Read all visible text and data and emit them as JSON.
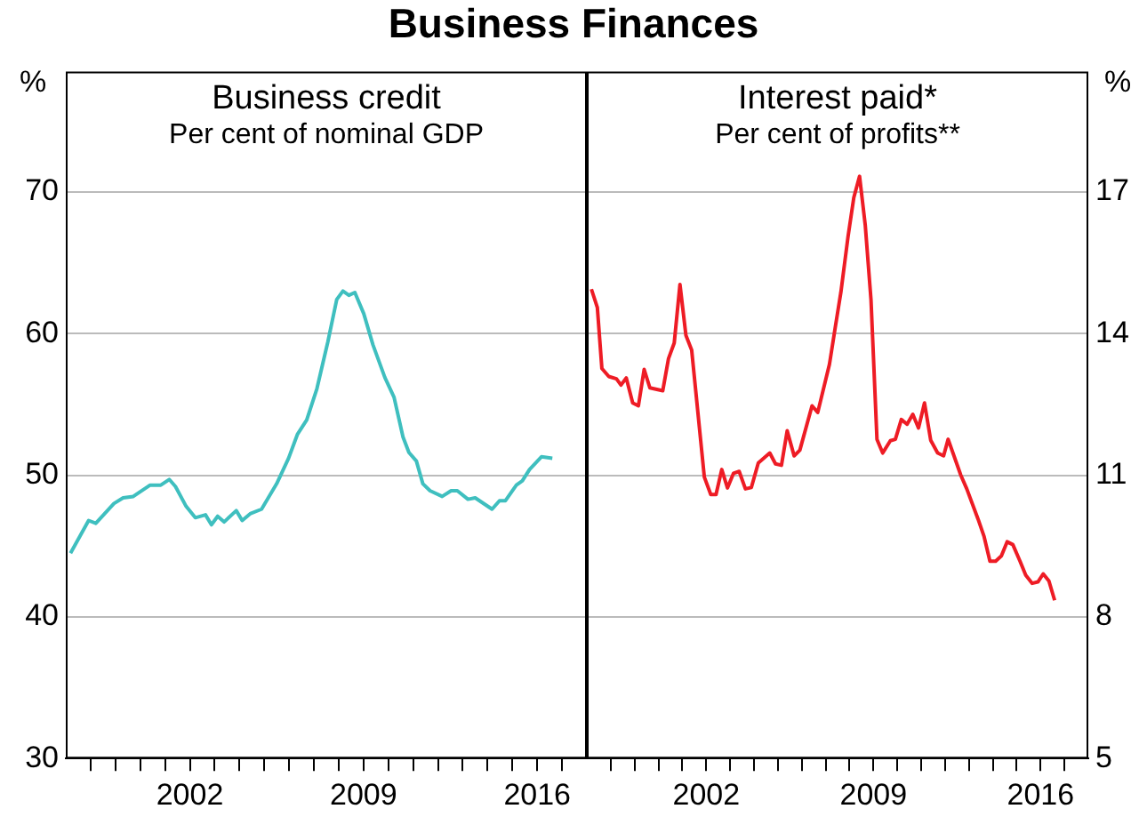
{
  "chart_data": [
    {
      "type": "line",
      "title": "Business Finances",
      "subtitle": "Business credit",
      "annotations": [
        "Per cent of nominal GDP"
      ],
      "ylabel": "%",
      "grid": "y",
      "xlim": [
        1997,
        2018
      ],
      "xticks": [
        {
          "value": 1998,
          "label": null
        },
        {
          "value": 1999,
          "label": null
        },
        {
          "value": 2000,
          "label": null
        },
        {
          "value": 2001,
          "label": null
        },
        2002,
        {
          "value": 2003,
          "label": null
        },
        {
          "value": 2004,
          "label": null
        },
        {
          "value": 2005,
          "label": null
        },
        {
          "value": 2006,
          "label": null
        },
        {
          "value": 2007,
          "label": null
        },
        {
          "value": 2008,
          "label": null
        },
        2009,
        {
          "value": 2010,
          "label": null
        },
        {
          "value": 2011,
          "label": null
        },
        {
          "value": 2012,
          "label": null
        },
        {
          "value": 2013,
          "label": null
        },
        {
          "value": 2014,
          "label": null
        },
        {
          "value": 2015,
          "label": null
        },
        2016,
        {
          "value": 2017,
          "label": null
        }
      ],
      "ylim": [
        30,
        78.5
      ],
      "yticks": [
        30,
        40,
        50,
        60,
        70
      ],
      "series": [
        {
          "color": "#3fbfbf",
          "x": [
            1997.19,
            1997.92,
            1998.21,
            1998.94,
            1999.31,
            1999.72,
            2000.4,
            2000.83,
            2001.17,
            2001.42,
            2001.85,
            2002.22,
            2002.63,
            2002.87,
            2003.12,
            2003.38,
            2003.87,
            2004.11,
            2004.45,
            2004.89,
            2005.5,
            2005.98,
            2006.34,
            2006.71,
            2007.12,
            2007.56,
            2007.92,
            2008.17,
            2008.41,
            2008.65,
            2009.01,
            2009.38,
            2009.86,
            2010.23,
            2010.59,
            2010.83,
            2011.13,
            2011.39,
            2011.68,
            2012.17,
            2012.53,
            2012.78,
            2013.21,
            2013.5,
            2014.18,
            2014.48,
            2014.72,
            2015.16,
            2015.4,
            2015.69,
            2016.17,
            2016.61
          ],
          "values": [
            44.5,
            46.8,
            46.6,
            48.0,
            48.4,
            48.5,
            49.3,
            49.3,
            49.7,
            49.2,
            47.8,
            47.0,
            47.2,
            46.5,
            47.1,
            46.7,
            47.5,
            46.8,
            47.3,
            47.6,
            49.4,
            51.2,
            52.9,
            53.9,
            56.1,
            59.4,
            62.4,
            63.0,
            62.7,
            62.9,
            61.4,
            59.2,
            56.9,
            55.5,
            52.7,
            51.6,
            51.0,
            49.4,
            48.9,
            48.5,
            48.9,
            48.9,
            48.3,
            48.4,
            47.6,
            48.2,
            48.2,
            49.3,
            49.6,
            50.4,
            51.3,
            51.2
          ]
        }
      ]
    },
    {
      "type": "line",
      "subtitle": "Interest paid*",
      "annotations": [
        "Per cent of profits**"
      ],
      "y2label": "%",
      "grid": "y",
      "xlim": [
        1997,
        2018
      ],
      "xticks": [
        {
          "value": 1998,
          "label": null
        },
        {
          "value": 1999,
          "label": null
        },
        {
          "value": 2000,
          "label": null
        },
        {
          "value": 2001,
          "label": null
        },
        2002,
        {
          "value": 2003,
          "label": null
        },
        {
          "value": 2004,
          "label": null
        },
        {
          "value": 2005,
          "label": null
        },
        {
          "value": 2006,
          "label": null
        },
        {
          "value": 2007,
          "label": null
        },
        {
          "value": 2008,
          "label": null
        },
        2009,
        {
          "value": 2010,
          "label": null
        },
        {
          "value": 2011,
          "label": null
        },
        {
          "value": 2012,
          "label": null
        },
        {
          "value": 2013,
          "label": null
        },
        {
          "value": 2014,
          "label": null
        },
        {
          "value": 2015,
          "label": null
        },
        2016,
        {
          "value": 2017,
          "label": null
        }
      ],
      "y2lim": [
        5,
        19.55
      ],
      "y2ticks": [
        5,
        8,
        11,
        14,
        17
      ],
      "series": [
        {
          "color": "#ee1c25",
          "axis": "y2",
          "x": [
            1997.19,
            1997.44,
            1997.63,
            1997.92,
            1998.24,
            1998.43,
            1998.65,
            1998.92,
            1999.16,
            1999.4,
            1999.64,
            2000.18,
            2000.42,
            2000.66,
            2000.9,
            2001.15,
            2001.39,
            2001.92,
            2002.19,
            2002.41,
            2002.65,
            2002.89,
            2003.14,
            2003.38,
            2003.64,
            2003.89,
            2004.18,
            2004.66,
            2004.9,
            2005.15,
            2005.39,
            2005.68,
            2005.92,
            2006.43,
            2006.67,
            2007.16,
            2007.4,
            2007.64,
            2007.94,
            2008.18,
            2008.42,
            2008.66,
            2008.9,
            2009.15,
            2009.39,
            2009.71,
            2009.92,
            2010.17,
            2010.41,
            2010.65,
            2010.89,
            2011.14,
            2011.4,
            2011.69,
            2011.94,
            2012.13,
            2012.66,
            2012.91,
            2013.39,
            2013.63,
            2013.88,
            2014.12,
            2014.36,
            2014.6,
            2014.84,
            2015.14,
            2015.38,
            2015.65,
            2015.89,
            2016.11,
            2016.35,
            2016.59
          ],
          "values": [
            14.94,
            14.55,
            13.26,
            13.09,
            13.04,
            12.91,
            13.06,
            12.53,
            12.47,
            13.24,
            12.85,
            12.79,
            13.47,
            13.8,
            15.04,
            13.96,
            13.65,
            10.96,
            10.59,
            10.59,
            11.12,
            10.73,
            11.04,
            11.08,
            10.71,
            10.74,
            11.26,
            11.47,
            11.24,
            11.21,
            11.94,
            11.41,
            11.53,
            12.47,
            12.33,
            13.35,
            14.12,
            14.88,
            16.06,
            16.88,
            17.33,
            16.29,
            14.71,
            11.76,
            11.47,
            11.73,
            11.76,
            12.18,
            12.08,
            12.29,
            12.0,
            12.53,
            11.74,
            11.47,
            11.41,
            11.76,
            11.0,
            10.71,
            10.06,
            9.71,
            9.18,
            9.18,
            9.29,
            9.59,
            9.53,
            9.18,
            8.88,
            8.71,
            8.74,
            8.91,
            8.76,
            8.35
          ]
        }
      ]
    }
  ]
}
